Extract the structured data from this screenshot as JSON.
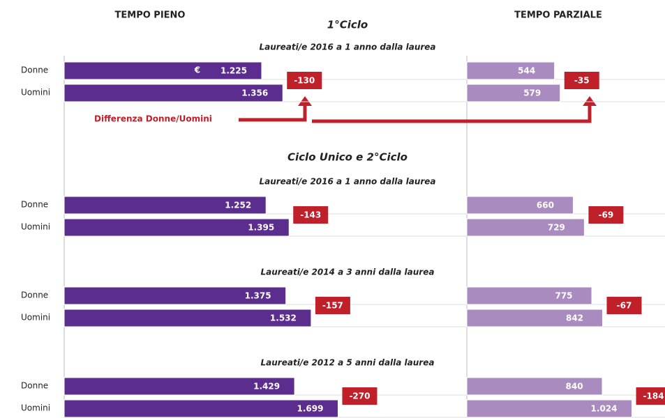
{
  "chart_data": {
    "type": "bar",
    "headers": [
      "TEMPO PIENO",
      "TEMPO PARZIALE"
    ],
    "currency": "€",
    "annotation": "Differenza Donne/Uomini",
    "colors": {
      "full": "#5b2d8e",
      "part": "#a98bc0",
      "difference": "#c0202a"
    },
    "sections": [
      {
        "title": "1°Ciclo",
        "groups": [
          {
            "title": "Laureati/e 2016 a 1 anno dalla laurea",
            "categories": [
              "Donne",
              "Uomini"
            ],
            "full": {
              "values": [
                1225,
                1356
              ],
              "value_labels": [
                "1.225",
                "1.356"
              ],
              "difference": -130
            },
            "part": {
              "values": [
                544,
                579
              ],
              "value_labels": [
                "544",
                "579"
              ],
              "difference": -35
            }
          }
        ]
      },
      {
        "title": "Ciclo Unico e 2°Ciclo",
        "groups": [
          {
            "title": "Laureati/e 2016 a 1 anno dalla laurea",
            "categories": [
              "Donne",
              "Uomini"
            ],
            "full": {
              "values": [
                1252,
                1395
              ],
              "value_labels": [
                "1.252",
                "1.395"
              ],
              "difference": -143
            },
            "part": {
              "values": [
                660,
                729
              ],
              "value_labels": [
                "660",
                "729"
              ],
              "difference": -69
            }
          },
          {
            "title": "Laureati/e 2014 a 3 anni dalla laurea",
            "categories": [
              "Donne",
              "Uomini"
            ],
            "full": {
              "values": [
                1375,
                1532
              ],
              "value_labels": [
                "1.375",
                "1.532"
              ],
              "difference": -157
            },
            "part": {
              "values": [
                775,
                842
              ],
              "value_labels": [
                "775",
                "842"
              ],
              "difference": -67
            }
          },
          {
            "title": "Laureati/e 2012 a 5 anni dalla laurea",
            "categories": [
              "Donne",
              "Uomini"
            ],
            "full": {
              "values": [
                1429,
                1699
              ],
              "value_labels": [
                "1.429",
                "1.699"
              ],
              "difference": -270
            },
            "part": {
              "values": [
                840,
                1024
              ],
              "value_labels": [
                "840",
                "1.024"
              ],
              "difference": -184
            }
          }
        ]
      }
    ]
  }
}
